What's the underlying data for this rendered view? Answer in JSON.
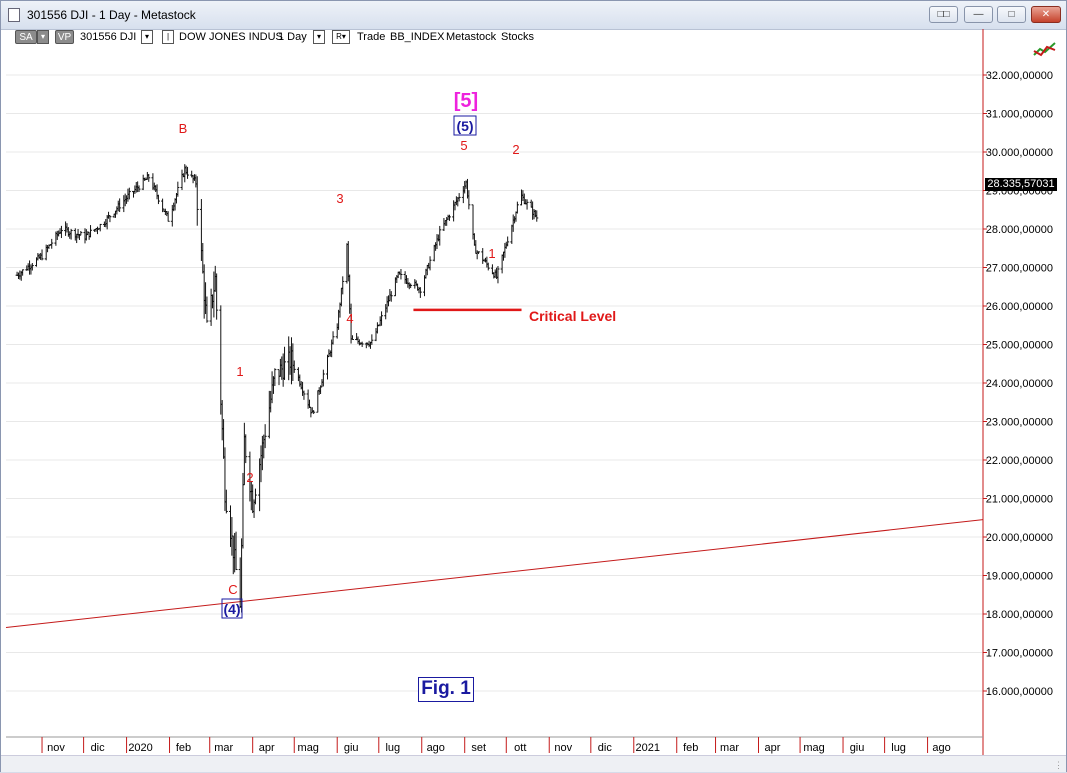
{
  "window": {
    "title": "301556 DJI - 1 Day - Metastock",
    "buttons": [
      "restore-down",
      "minimize",
      "maximize",
      "close"
    ]
  },
  "toolbar": {
    "sa_label": "SA",
    "vp_label": "VP",
    "symbol": "301556 DJI",
    "name": "DOW JONES INDUS",
    "period": "1 Day",
    "r_label": "R",
    "items": [
      "Trade",
      "BB_INDEX",
      "Metastock",
      "Stocks"
    ]
  },
  "chart_data": {
    "type": "ohlc",
    "y_ticks": [
      "32.000,00000",
      "31.000,00000",
      "30.000,00000",
      "29.000,00000",
      "28.000,00000",
      "27.000,00000",
      "26.000,00000",
      "25.000,00000",
      "24.000,00000",
      "23.000,00000",
      "22.000,00000",
      "21.000,00000",
      "20.000,00000",
      "19.000,00000",
      "18.000,00000",
      "17.000,00000",
      "16.000,00000"
    ],
    "x_labels": [
      "nov",
      "dic",
      "2020",
      "feb",
      "mar",
      "apr",
      "mag",
      "giu",
      "lug",
      "ago",
      "set",
      "ott",
      "nov",
      "dic",
      "2021",
      "feb",
      "mar",
      "apr",
      "mag",
      "giu",
      "lug",
      "ago"
    ],
    "last_price": "28.335,57031",
    "wave_labels": [
      "B",
      "C",
      "1",
      "2",
      "3",
      "4",
      "5",
      "1",
      "2"
    ],
    "wave_counts": {
      "primary": "[5]",
      "intermediate": "(5)",
      "low": "(4)"
    },
    "critical_level_label": "Critical Level",
    "critical_level_value": 25900,
    "trendline": {
      "start_value": 17650,
      "end_value": 20450
    },
    "series_anchors": [
      [
        "2019-10-14",
        26800
      ],
      [
        "2019-11-01",
        27300
      ],
      [
        "2019-11-15",
        28000
      ],
      [
        "2019-12-02",
        27800
      ],
      [
        "2019-12-15",
        28150
      ],
      [
        "2020-01-02",
        28850
      ],
      [
        "2020-01-17",
        29350
      ],
      [
        "2020-01-31",
        28250
      ],
      [
        "2020-02-12",
        29550
      ],
      [
        "2020-02-20",
        29200
      ],
      [
        "2020-02-28",
        25400
      ],
      [
        "2020-03-05",
        26700
      ],
      [
        "2020-03-12",
        21200
      ],
      [
        "2020-03-16",
        20200
      ],
      [
        "2020-03-23",
        18300
      ],
      [
        "2020-03-26",
        22500
      ],
      [
        "2020-04-01",
        20900
      ],
      [
        "2020-04-17",
        24200
      ],
      [
        "2020-04-29",
        24600
      ],
      [
        "2020-05-14",
        23200
      ],
      [
        "2020-06-01",
        25500
      ],
      [
        "2020-06-08",
        27550
      ],
      [
        "2020-06-11",
        25100
      ],
      [
        "2020-06-26",
        25050
      ],
      [
        "2020-07-15",
        26800
      ],
      [
        "2020-07-31",
        26450
      ],
      [
        "2020-08-14",
        27900
      ],
      [
        "2020-09-02",
        29200
      ],
      [
        "2020-09-08",
        27500
      ],
      [
        "2020-09-24",
        26750
      ],
      [
        "2020-10-09",
        28600
      ],
      [
        "2020-10-12",
        28850
      ],
      [
        "2020-10-23",
        28300
      ]
    ]
  },
  "figure_label": "Fig. 1",
  "colors": {
    "wave": "#e01818",
    "primary": "#ee22dd",
    "intermediate": "#1a1aa0",
    "trend": "#c41a1a"
  }
}
